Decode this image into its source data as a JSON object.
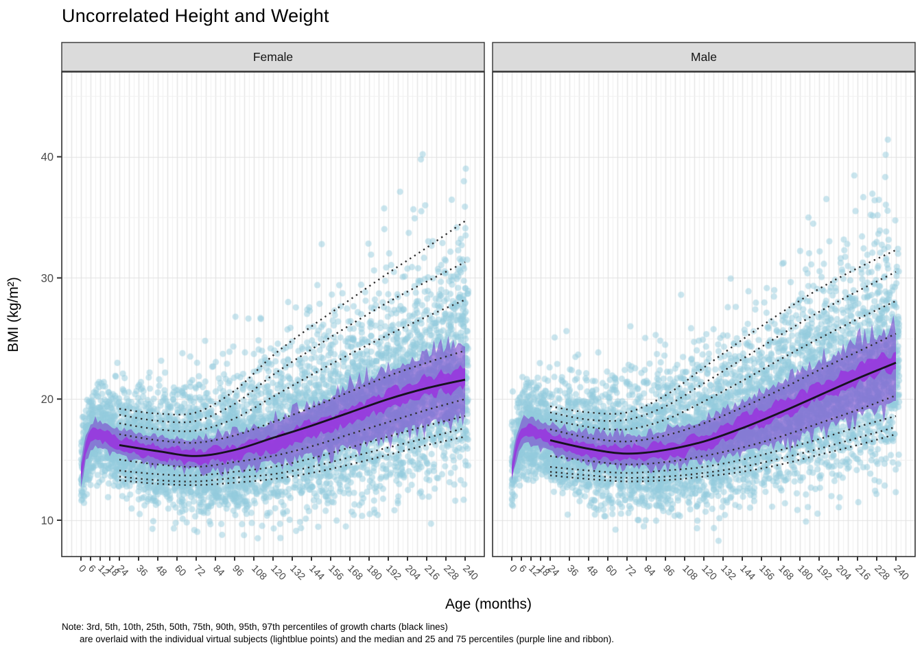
{
  "title": "Uncorrelated Height and Weight",
  "note": {
    "line1": "Note: 3rd, 5th, 10th, 25th, 50th, 75th, 90th, 95th, 97th percentiles of growth charts (black lines)",
    "line2": "are overlaid with the individual virtual subjects (lightblue points) and the median and 25 and 75 percentiles (purple line and ribbon)."
  },
  "colors": {
    "point": "rgba(148,203,222,0.5)",
    "ribbon_outer": "#7E52D0",
    "ribbon_inner": "#9B2FE0",
    "median_solid": "#17121F",
    "percentile_dotted": "#2E2E2E",
    "grid_major": "#E2E2E2",
    "grid_minor": "#F1F1F1",
    "strip_bg": "#DBDBDB",
    "panel_border": "#333333",
    "axis_text": "#4A4A4A",
    "background": "#FFFFFF"
  },
  "chart_data": {
    "type": "scatter",
    "title": "Uncorrelated Height and Weight",
    "xlabel": "Age (months)",
    "ylabel": "BMI (kg/m²)",
    "x_ticks": [
      0,
      6,
      12,
      18,
      24,
      36,
      48,
      60,
      72,
      84,
      96,
      108,
      120,
      132,
      144,
      156,
      168,
      180,
      192,
      204,
      216,
      228,
      240
    ],
    "y_ticks": [
      10,
      20,
      30,
      40
    ],
    "x_domain": [
      -12,
      252
    ],
    "y_domain": [
      7,
      47
    ],
    "grid": {
      "x_minor_step": 3,
      "x_major_step": 6,
      "y_minor": [
        5,
        15,
        25,
        35,
        45
      ],
      "y_major": [
        10,
        20,
        30,
        40
      ]
    },
    "legend_position": "none",
    "percentile_labels": [
      "3rd",
      "5th",
      "10th",
      "25th",
      "50th",
      "75th",
      "90th",
      "95th",
      "97th"
    ],
    "percentile_months": [
      24,
      48,
      72,
      96,
      120,
      144,
      168,
      192,
      216,
      240
    ],
    "ribbon_months": [
      0,
      3,
      6,
      9,
      12,
      18,
      24,
      36,
      48,
      60,
      72,
      84,
      96,
      108,
      120,
      132,
      144,
      156,
      168,
      180,
      192,
      204,
      216,
      228,
      240
    ],
    "facets": [
      {
        "label": "Female",
        "percentiles": {
          "p3": [
            13.3,
            13.0,
            12.9,
            13.1,
            13.4,
            13.9,
            14.6,
            15.4,
            16.2,
            16.9
          ],
          "p5": [
            13.6,
            13.3,
            13.2,
            13.5,
            13.8,
            14.4,
            15.2,
            16.0,
            16.8,
            17.6
          ],
          "p10": [
            14.1,
            13.8,
            13.7,
            14.0,
            14.4,
            15.1,
            16.0,
            16.9,
            17.8,
            18.6
          ],
          "p25": [
            15.0,
            14.6,
            14.4,
            14.8,
            15.3,
            16.1,
            17.1,
            18.1,
            19.1,
            20.0
          ],
          "p50": [
            16.2,
            15.7,
            15.3,
            15.8,
            16.8,
            17.8,
            18.9,
            20.0,
            20.9,
            21.6
          ],
          "p75": [
            17.1,
            16.6,
            16.4,
            17.0,
            18.1,
            19.3,
            20.6,
            21.9,
            23.0,
            24.0
          ],
          "p90": [
            18.0,
            17.5,
            17.4,
            18.4,
            20.2,
            22.0,
            23.7,
            25.3,
            26.8,
            28.2
          ],
          "p95": [
            18.7,
            18.2,
            18.2,
            19.6,
            22.0,
            24.1,
            26.1,
            28.0,
            29.7,
            31.3
          ],
          "p97": [
            19.2,
            18.8,
            18.9,
            20.7,
            23.6,
            26.0,
            28.2,
            30.4,
            32.5,
            34.7
          ]
        },
        "ribbon": {
          "lo": [
            13.0,
            15.0,
            16.0,
            16.2,
            16.1,
            15.8,
            15.5,
            15.0,
            14.7,
            14.5,
            14.4,
            14.4,
            14.5,
            14.7,
            15.0,
            15.3,
            15.6,
            16.0,
            16.4,
            16.8,
            17.3,
            17.7,
            18.2,
            18.6,
            19.0
          ],
          "mid": [
            13.8,
            15.9,
            16.9,
            17.1,
            17.0,
            16.7,
            16.4,
            15.9,
            15.6,
            15.4,
            15.3,
            15.4,
            15.6,
            15.9,
            16.4,
            16.9,
            17.5,
            18.1,
            18.7,
            19.3,
            19.9,
            20.4,
            20.9,
            21.4,
            21.8
          ],
          "hi": [
            14.5,
            16.7,
            17.8,
            18.1,
            18.0,
            17.7,
            17.4,
            17.0,
            16.7,
            16.6,
            16.5,
            16.7,
            17.0,
            17.4,
            17.9,
            18.5,
            19.2,
            19.9,
            20.7,
            21.4,
            22.2,
            22.8,
            23.4,
            23.9,
            24.3
          ]
        },
        "scatter": {
          "n": 6200,
          "seed": 424242,
          "age_max": 242,
          "point_radius": 4.6
        }
      },
      {
        "label": "Male",
        "percentiles": {
          "p3": [
            13.7,
            13.4,
            13.2,
            13.3,
            13.6,
            14.0,
            14.6,
            15.4,
            16.2,
            17.1
          ],
          "p5": [
            14.0,
            13.7,
            13.5,
            13.6,
            13.9,
            14.4,
            15.1,
            15.9,
            16.8,
            17.7
          ],
          "p10": [
            14.4,
            14.1,
            13.9,
            14.1,
            14.4,
            15.0,
            15.8,
            16.7,
            17.7,
            18.6
          ],
          "p25": [
            15.3,
            14.9,
            14.6,
            14.8,
            15.3,
            16.0,
            16.9,
            18.0,
            19.1,
            20.3
          ],
          "p50": [
            16.6,
            15.9,
            15.5,
            15.8,
            16.5,
            17.6,
            18.9,
            20.3,
            21.7,
            23.0
          ],
          "p75": [
            17.5,
            16.8,
            16.5,
            17.0,
            18.0,
            19.3,
            20.8,
            22.4,
            23.9,
            25.4
          ],
          "p90": [
            18.3,
            17.7,
            17.5,
            18.3,
            19.8,
            21.5,
            23.3,
            25.0,
            26.6,
            28.1
          ],
          "p95": [
            18.9,
            18.3,
            18.3,
            19.4,
            21.3,
            23.3,
            25.3,
            27.2,
            28.9,
            30.5
          ],
          "p97": [
            19.4,
            18.9,
            18.9,
            20.3,
            22.6,
            24.9,
            27.1,
            29.1,
            30.8,
            32.3
          ]
        },
        "ribbon": {
          "lo": [
            13.3,
            15.2,
            16.2,
            16.5,
            16.4,
            16.1,
            15.8,
            15.2,
            14.9,
            14.7,
            14.6,
            14.6,
            14.7,
            14.9,
            15.1,
            15.4,
            15.8,
            16.2,
            16.7,
            17.2,
            17.8,
            18.3,
            18.9,
            19.4,
            19.9
          ],
          "mid": [
            14.1,
            16.1,
            17.2,
            17.5,
            17.4,
            17.1,
            16.7,
            16.2,
            15.9,
            15.6,
            15.5,
            15.6,
            15.8,
            16.1,
            16.6,
            17.1,
            17.8,
            18.4,
            19.1,
            19.9,
            20.6,
            21.3,
            22.0,
            22.6,
            23.2
          ],
          "hi": [
            14.8,
            17.0,
            18.1,
            18.4,
            18.3,
            18.0,
            17.7,
            17.3,
            17.0,
            16.8,
            16.8,
            16.9,
            17.2,
            17.6,
            18.1,
            18.8,
            19.5,
            20.3,
            21.1,
            21.9,
            22.7,
            23.5,
            24.2,
            24.8,
            25.3
          ]
        },
        "scatter": {
          "n": 6200,
          "seed": 133799,
          "age_max": 242,
          "point_radius": 4.6
        }
      }
    ],
    "note": [
      "Note: 3rd, 5th, 10th, 25th, 50th, 75th, 90th, 95th, 97th percentiles of growth charts (black lines)",
      "are overlaid with the individual virtual subjects (lightblue points) and the median and 25 and 75 percentiles (purple line and ribbon)."
    ]
  }
}
